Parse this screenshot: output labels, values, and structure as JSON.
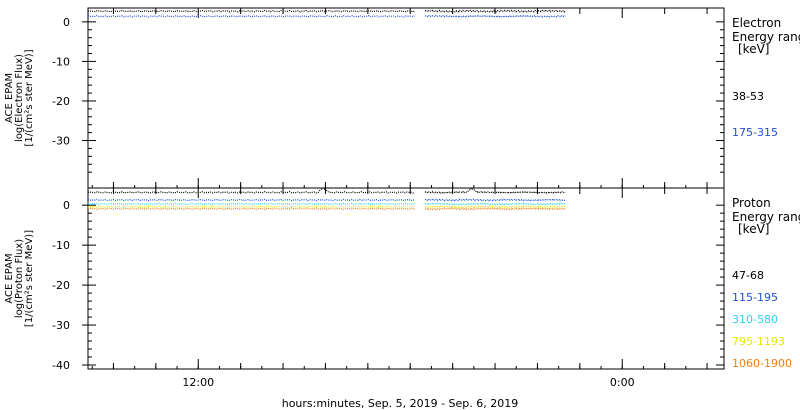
{
  "chart_data": {
    "type": "line",
    "x_tick_labels": [
      "12:00",
      "0:00"
    ],
    "xlabel": "hours:minutes, Sep.  5, 2019 - Sep.  6, 2019",
    "panels": [
      {
        "id": "electron",
        "ylabel_lines": [
          "ACE EPAM",
          "log(Electron Flux)",
          "[1/(cm²s ster MeV)]"
        ],
        "ylim": [
          -42,
          3.5
        ],
        "yticks": [
          0,
          -10,
          -20,
          -30
        ],
        "legend_title": [
          "Electron",
          "Energy ranges",
          "[keV]"
        ],
        "series": [
          {
            "name": "38-53",
            "color": "#000000",
            "level": 2.7
          },
          {
            "name": "175-315",
            "color": "#1f4fd6",
            "level": 1.4
          }
        ]
      },
      {
        "id": "proton",
        "ylabel_lines": [
          "ACE EPAM",
          "log(Proton Flux)",
          "[1/(cm²s ster MeV)]"
        ],
        "ylim": [
          -41,
          4.3
        ],
        "yticks": [
          0,
          -10,
          -20,
          -30,
          -40
        ],
        "legend_title": [
          "Proton",
          "Energy ranges",
          "[keV]"
        ],
        "series": [
          {
            "name": "47-68",
            "color": "#000000",
            "level": 3.2
          },
          {
            "name": "115-195",
            "color": "#1f4fd6",
            "level": 1.3
          },
          {
            "name": "310-580",
            "color": "#27d3f0",
            "level": 0.3
          },
          {
            "name": "795-1193",
            "color": "#e6e600",
            "level": -0.4
          },
          {
            "name": "1060-1900",
            "color": "#f07c10",
            "level": -0.9
          }
        ]
      }
    ],
    "data_hours": {
      "start": 0,
      "end": 22.5,
      "gap": [
        15.4,
        15.9
      ],
      "axis_end": 30
    }
  }
}
